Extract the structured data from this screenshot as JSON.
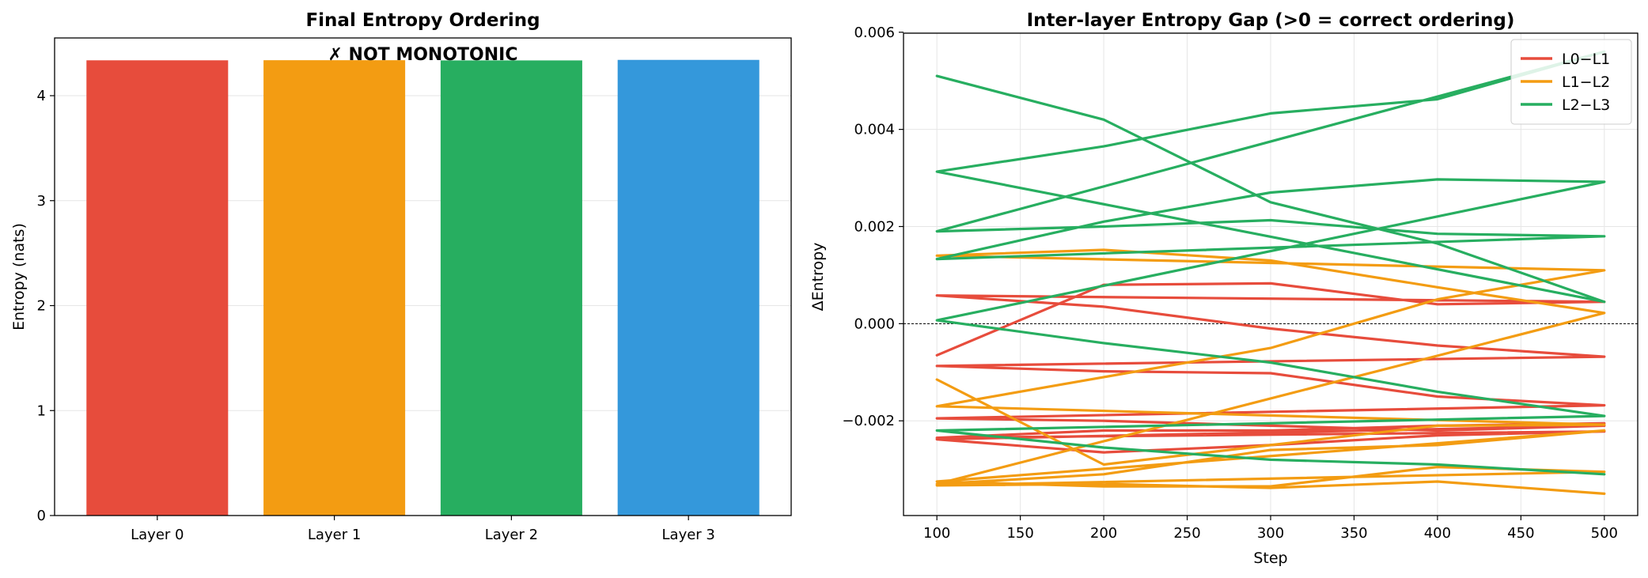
{
  "chart_data": [
    {
      "type": "bar",
      "title": "Final Entropy Ordering",
      "annotation": "✗ NOT MONOTONIC",
      "annotation_color": "#ff0000",
      "categories": [
        "Layer 0",
        "Layer 1",
        "Layer 2",
        "Layer 3"
      ],
      "values": [
        4.337,
        4.338,
        4.336,
        4.341
      ],
      "colors": [
        "#e74c3c",
        "#f39c12",
        "#27ae60",
        "#3498db"
      ],
      "xlabel": "",
      "ylabel": "Entropy (nats)",
      "ylim": [
        0,
        4.55
      ],
      "yticks": [
        0,
        1,
        2,
        3,
        4
      ],
      "ytick_labels": [
        "0",
        "1",
        "2",
        "3",
        "4"
      ],
      "grid": true
    },
    {
      "type": "line",
      "title": "Inter-layer Entropy Gap (>0 = correct ordering)",
      "xlabel": "Step",
      "ylabel": "ΔEntropy",
      "xlim": [
        80,
        520
      ],
      "ylim": [
        -0.00395,
        0.00598
      ],
      "xticks": [
        100,
        150,
        200,
        250,
        300,
        350,
        400,
        450,
        500
      ],
      "xtick_labels": [
        "100",
        "150",
        "200",
        "250",
        "300",
        "350",
        "400",
        "450",
        "500"
      ],
      "yticks": [
        -0.002,
        0,
        0.002,
        0.004,
        0.006
      ],
      "ytick_labels": [
        "−0.002",
        "0.000",
        "0.002",
        "0.004",
        "0.006"
      ],
      "zero_line": true,
      "grid": true,
      "legend_position": "top-right",
      "legend": [
        {
          "name": "L0−L1",
          "color": "#e74c3c"
        },
        {
          "name": "L1−L2",
          "color": "#f39c12"
        },
        {
          "name": "L2−L3",
          "color": "#27ae60"
        }
      ],
      "x": [
        100,
        200,
        300,
        400,
        500,
        100,
        200,
        300,
        400,
        500,
        100,
        200,
        300,
        400,
        500,
        100,
        200,
        300,
        400,
        500,
        100,
        200,
        300,
        400,
        500,
        100,
        200,
        300,
        400,
        500
      ],
      "series": [
        {
          "name": "L0−L1",
          "color": "#e74c3c",
          "values": [
            -0.00065,
            0.0008,
            0.00083,
            0.0004,
            0.00045,
            0.00058,
            0.00035,
            -0.0001,
            -0.00045,
            -0.00068,
            -0.00087,
            -0.00098,
            -0.00102,
            -0.0015,
            -0.00168,
            -0.00195,
            -0.002,
            -0.0021,
            -0.0022,
            -0.0021,
            -0.00238,
            -0.00265,
            -0.0025,
            -0.0023,
            -0.00222,
            -0.00235,
            -0.0022,
            -0.0022,
            -0.0021,
            -0.00205
          ]
        },
        {
          "name": "L1−L2",
          "color": "#f39c12",
          "values": [
            -0.00115,
            -0.0029,
            -0.0025,
            -0.0021,
            -0.00208,
            -0.0017,
            -0.0011,
            -0.0005,
            0.0005,
            0.0011,
            0.0014,
            0.00152,
            0.0013,
            0.00075,
            0.00022,
            -0.0033,
            -0.0031,
            -0.0026,
            -0.0025,
            -0.0022,
            -0.00325,
            -0.00335,
            -0.00335,
            -0.00295,
            -0.00305,
            -0.00333,
            -0.0033,
            -0.00338,
            -0.00325,
            -0.0035
          ]
        },
        {
          "name": "L2−L3",
          "color": "#27ae60",
          "values": [
            0.0051,
            0.0042,
            0.0025,
            0.00165,
            0.00045,
            0.00313,
            0.00365,
            0.00433,
            0.00462,
            0.0056,
            0.0019,
            0.002,
            0.00213,
            0.00185,
            0.0018,
            0.00133,
            0.0021,
            0.0027,
            0.00297,
            0.00292,
            7e-05,
            -0.0004,
            -0.0008,
            -0.0014,
            -0.0019,
            -0.0022,
            -0.00255,
            -0.0028,
            -0.0029,
            -0.0031
          ]
        }
      ]
    }
  ]
}
